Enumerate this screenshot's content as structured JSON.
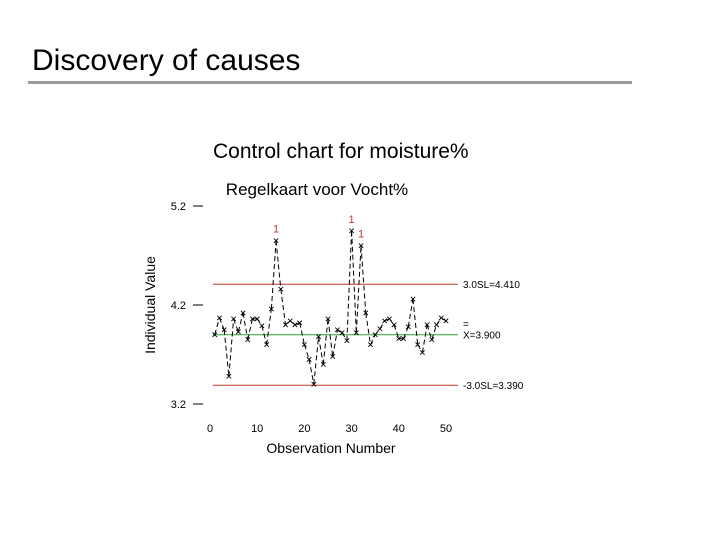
{
  "slide": {
    "title": "Discovery of causes",
    "caption": "Control chart for moisture%"
  },
  "colors": {
    "limit_line": "#c0392b",
    "center_line": "#2ca02c",
    "series": "#000000",
    "out_of_control": "#c0392b",
    "title_rule": "#9a9a9a"
  },
  "chart_data": {
    "type": "line",
    "title": "Regelkaart voor Vocht%",
    "xlabel": "Observation Number",
    "ylabel": "Individual Value",
    "xlim": [
      0,
      50
    ],
    "ylim": [
      3.2,
      5.2
    ],
    "xticks": [
      "0",
      "10",
      "20",
      "30",
      "40",
      "50"
    ],
    "yticks": [
      "3.2",
      "4.2",
      "5.2"
    ],
    "x": [
      1,
      2,
      3,
      4,
      5,
      6,
      7,
      8,
      9,
      10,
      11,
      12,
      13,
      14,
      15,
      16,
      17,
      18,
      19,
      20,
      21,
      22,
      23,
      24,
      25,
      26,
      27,
      28,
      29,
      30,
      31,
      32,
      33,
      34,
      35,
      36,
      37,
      38,
      39,
      40,
      41,
      42,
      43,
      44,
      45,
      46,
      47,
      48,
      49,
      50
    ],
    "values": [
      3.9,
      4.07,
      3.95,
      3.48,
      4.06,
      3.93,
      4.12,
      3.85,
      4.06,
      4.06,
      3.99,
      3.8,
      4.16,
      4.85,
      4.36,
      4.0,
      4.04,
      4.0,
      4.02,
      3.8,
      3.65,
      3.4,
      3.88,
      3.6,
      4.06,
      3.68,
      3.95,
      3.92,
      3.84,
      4.95,
      3.92,
      4.8,
      4.12,
      3.8,
      3.9,
      3.96,
      4.04,
      4.06,
      4.0,
      3.86,
      3.86,
      3.98,
      4.26,
      3.8,
      3.72,
      4.0,
      3.85,
      4.0,
      4.07,
      4.04
    ],
    "out_of_control_points": [
      {
        "x": 14,
        "label": "1"
      },
      {
        "x": 30,
        "label": "1"
      },
      {
        "x": 32,
        "label": "1"
      }
    ],
    "control_limits": {
      "ucl": 4.41,
      "center": 3.9,
      "lcl": 3.39,
      "ucl_label": "3.0SL=4.410",
      "center_bar": "=",
      "center_label": "X=3.900",
      "lcl_label": "-3.0SL=3.390"
    },
    "grid": false
  }
}
